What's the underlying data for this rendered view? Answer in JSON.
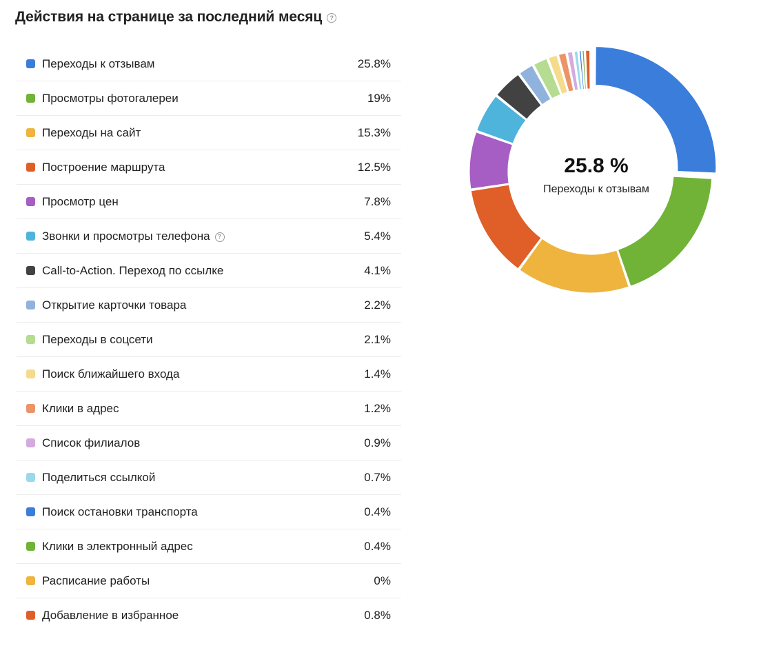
{
  "header": {
    "title": "Действия на странице за последний месяц",
    "help_glyph": "?"
  },
  "chart_data": {
    "type": "pie",
    "categories": [
      "Переходы к отзывам",
      "Просмотры фотогалереи",
      "Переходы на сайт",
      "Построение маршрута",
      "Просмотр цен",
      "Звонки и просмотры телефона",
      "Call-to-Action. Переход по ссылке",
      "Открытие карточки товара",
      "Переходы в соцсети",
      "Поиск ближайшего входа",
      "Клики в адрес",
      "Список филиалов",
      "Поделиться ссылкой",
      "Поиск остановки транспорта",
      "Клики в электронный адрес",
      "Расписание работы",
      "Добавление в избранное"
    ],
    "values": [
      25.8,
      19,
      15.3,
      12.5,
      7.8,
      5.4,
      4.1,
      2.2,
      2.1,
      1.4,
      1.2,
      0.9,
      0.7,
      0.4,
      0.4,
      0,
      0.8
    ],
    "value_labels": [
      "25.8%",
      "19%",
      "15.3%",
      "12.5%",
      "7.8%",
      "5.4%",
      "4.1%",
      "2.2%",
      "2.1%",
      "1.4%",
      "1.2%",
      "0.9%",
      "0.7%",
      "0.4%",
      "0.4%",
      "0%",
      "0.8%"
    ],
    "colors": [
      "#3a7ddb",
      "#70b337",
      "#efb43e",
      "#e05e28",
      "#a65dc4",
      "#4eb4dc",
      "#424242",
      "#8fb3dc",
      "#b5dc91",
      "#f5db8c",
      "#ec9467",
      "#d4aadf",
      "#9bd8ee",
      "#3a7ddb",
      "#70b337",
      "#efb43e",
      "#e05e28"
    ],
    "highlighted_index": 0,
    "center_value": "25.8 %",
    "center_label": "Переходы к отзывам",
    "legend_help_index": 5,
    "legend_position": "left"
  }
}
